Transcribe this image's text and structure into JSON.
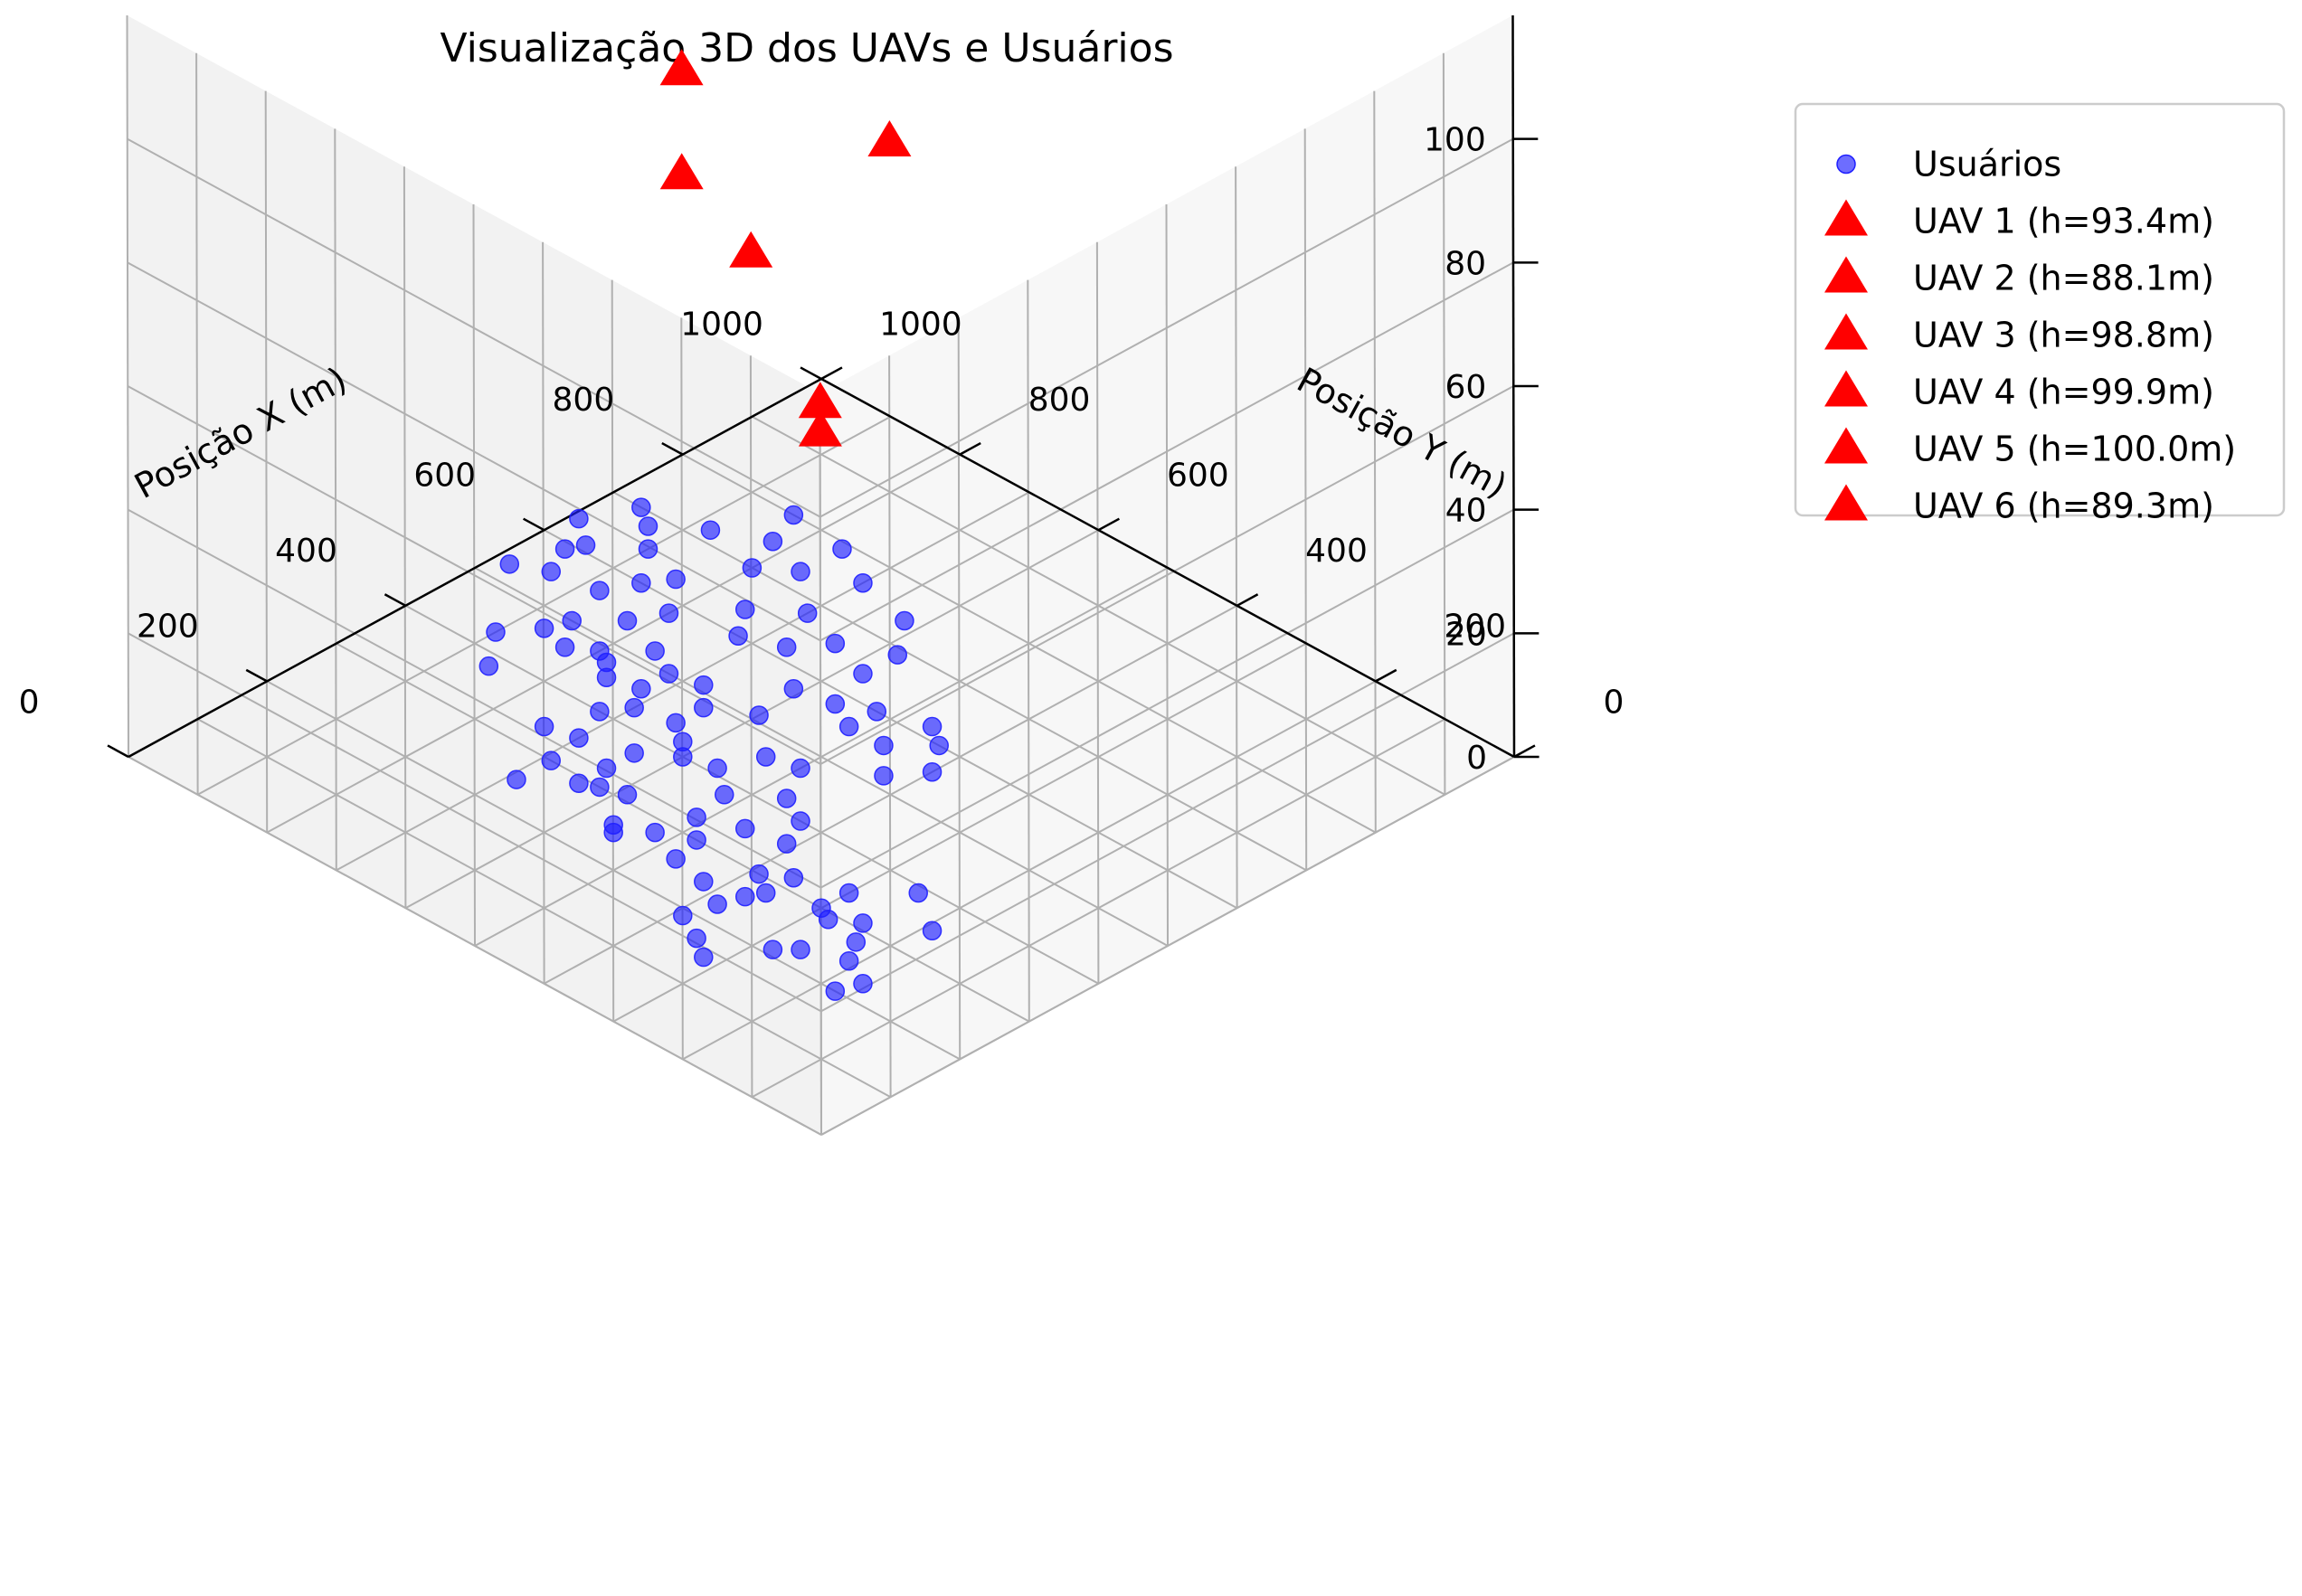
{
  "chart_data": {
    "type": "scatter",
    "title": "Visualização 3D dos UAVs e Usuários",
    "xlabel": "Posição X (m)",
    "ylabel": "Posição Y (m)",
    "zlabel": "",
    "xlim": [
      0,
      1000
    ],
    "ylim": [
      0,
      1000
    ],
    "zlim": [
      0,
      120
    ],
    "x_ticks": [
      0,
      200,
      400,
      600,
      800,
      1000
    ],
    "y_ticks": [
      0,
      200,
      400,
      600,
      800,
      1000
    ],
    "z_ticks": [
      0,
      20,
      40,
      60,
      80,
      100
    ],
    "grid": true,
    "legend_position": "top-right, outside",
    "colors": {
      "users": "#1f1fff",
      "uav": "#ff0000",
      "pane_back": "#f2f2f2",
      "pane_side": "#f7f7f7",
      "grid": "#b0b0b0"
    },
    "series": [
      {
        "name": "Usuários",
        "marker": "circle",
        "points": [
          [
            200,
            180,
            0
          ],
          [
            230,
            170,
            0
          ],
          [
            300,
            300,
            0
          ],
          [
            250,
            210,
            0
          ],
          [
            280,
            230,
            0
          ],
          [
            230,
            260,
            0
          ],
          [
            310,
            250,
            0
          ],
          [
            210,
            280,
            0
          ],
          [
            290,
            280,
            0
          ],
          [
            350,
            190,
            0
          ],
          [
            390,
            250,
            0
          ],
          [
            150,
            320,
            0
          ],
          [
            170,
            350,
            0
          ],
          [
            300,
            390,
            0
          ],
          [
            320,
            360,
            0
          ],
          [
            340,
            300,
            0
          ],
          [
            280,
            360,
            0
          ],
          [
            260,
            370,
            0
          ],
          [
            230,
            380,
            0
          ],
          [
            190,
            390,
            0
          ],
          [
            360,
            410,
            0
          ],
          [
            350,
            460,
            0
          ],
          [
            250,
            420,
            0
          ],
          [
            260,
            470,
            0
          ],
          [
            300,
            480,
            0
          ],
          [
            330,
            510,
            0
          ],
          [
            280,
            520,
            0
          ],
          [
            250,
            550,
            0
          ],
          [
            260,
            560,
            0
          ],
          [
            380,
            520,
            0
          ],
          [
            410,
            560,
            0
          ],
          [
            420,
            620,
            0
          ],
          [
            310,
            590,
            0
          ],
          [
            290,
            640,
            0
          ],
          [
            330,
            640,
            0
          ],
          [
            370,
            640,
            0
          ],
          [
            400,
            600,
            0
          ],
          [
            300,
            620,
            0
          ],
          [
            250,
            690,
            0
          ],
          [
            300,
            690,
            0
          ],
          [
            350,
            700,
            0
          ],
          [
            340,
            740,
            0
          ],
          [
            400,
            720,
            0
          ],
          [
            430,
            700,
            0
          ],
          [
            460,
            720,
            0
          ],
          [
            450,
            760,
            0
          ],
          [
            470,
            780,
            0
          ],
          [
            500,
            720,
            0
          ],
          [
            520,
            760,
            0
          ],
          [
            480,
            800,
            0
          ],
          [
            540,
            820,
            0
          ],
          [
            580,
            800,
            0
          ],
          [
            500,
            860,
            0
          ],
          [
            560,
            880,
            0
          ],
          [
            600,
            860,
            0
          ],
          [
            470,
            870,
            0
          ],
          [
            630,
            840,
            0
          ],
          [
            650,
            900,
            0
          ],
          [
            550,
            940,
            0
          ],
          [
            590,
            960,
            0
          ],
          [
            610,
            950,
            0
          ],
          [
            530,
            980,
            0
          ],
          [
            680,
            930,
            0
          ],
          [
            700,
            960,
            0
          ],
          [
            640,
            990,
            0
          ],
          [
            430,
            900,
            0
          ],
          [
            380,
            860,
            0
          ],
          [
            460,
            830,
            0
          ],
          [
            510,
            680,
            0
          ],
          [
            480,
            650,
            0
          ],
          [
            440,
            650,
            0
          ],
          [
            510,
            600,
            0
          ],
          [
            580,
            560,
            0
          ],
          [
            560,
            520,
            0
          ],
          [
            470,
            500,
            0
          ],
          [
            460,
            540,
            0
          ],
          [
            420,
            470,
            0
          ],
          [
            400,
            430,
            0
          ],
          [
            570,
            610,
            0
          ],
          [
            620,
            670,
            0
          ],
          [
            600,
            720,
            0
          ],
          [
            640,
            750,
            0
          ],
          [
            700,
            800,
            0
          ],
          [
            730,
            760,
            0
          ],
          [
            750,
            820,
            0
          ],
          [
            680,
            700,
            0
          ],
          [
            660,
            640,
            0
          ],
          [
            640,
            580,
            0
          ],
          [
            600,
            520,
            0
          ],
          [
            560,
            470,
            0
          ],
          [
            520,
            430,
            0
          ],
          [
            560,
            400,
            0
          ],
          [
            600,
            430,
            0
          ],
          [
            620,
            460,
            0
          ],
          [
            690,
            580,
            0
          ],
          [
            740,
            620,
            0
          ],
          [
            760,
            700,
            0
          ],
          [
            790,
            760,
            0
          ],
          [
            800,
            840,
            0
          ],
          [
            720,
            880,
            0
          ]
        ]
      },
      {
        "name": "UAV 1 (h=93.4m)",
        "marker": "triangle",
        "points": [
          [
            600,
            500,
            93.4
          ]
        ]
      },
      {
        "name": "UAV 2 (h=88.1m)",
        "marker": "triangle",
        "points": [
          [
            450,
            650,
            88.1
          ]
        ]
      },
      {
        "name": "UAV 3 (h=98.8m)",
        "marker": "triangle",
        "points": [
          [
            500,
            700,
            98.8
          ]
        ]
      },
      {
        "name": "UAV 4 (h=99.9m)",
        "marker": "triangle",
        "points": [
          [
            300,
            400,
            99.9
          ]
        ]
      },
      {
        "name": "UAV 5 (h=100.0m)",
        "marker": "triangle",
        "points": [
          [
            150,
            150,
            100.0
          ]
        ]
      },
      {
        "name": "UAV 6 (h=89.3m)",
        "marker": "triangle",
        "points": [
          [
            200,
            200,
            89.3
          ]
        ]
      }
    ]
  }
}
